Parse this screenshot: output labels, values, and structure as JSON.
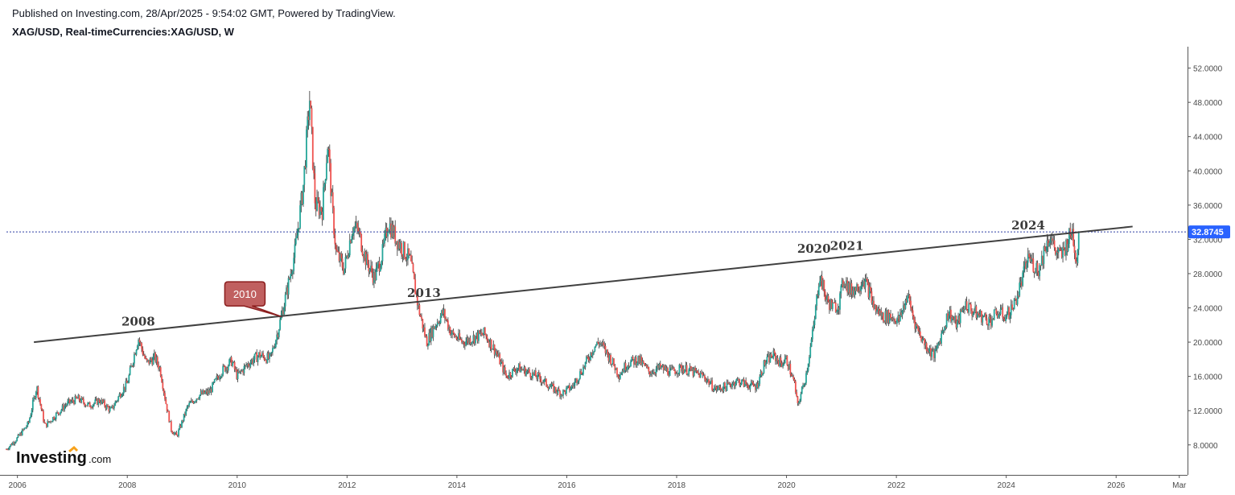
{
  "header": {
    "published": "Published on Investing.com, 28/Apr/2025 - 9:54:02 GMT, Powered by TradingView.",
    "symbol": "XAG/USD, Real-timeCurrencies:XAG/USD, W"
  },
  "logo": {
    "text": "Investing",
    "suffix": ".com"
  },
  "colors": {
    "up": "#26a69a",
    "down": "#ef5350",
    "wick": "#333333",
    "trendline": "#404040",
    "price_line": "#2f3fa3",
    "price_badge": "#2962ff",
    "callout": "#c06060"
  },
  "chart_data": {
    "type": "line",
    "description": "Weekly silver price chart with a rising trendline connecting peaks",
    "x_ticks": [
      "2006",
      "2008",
      "2010",
      "2012",
      "2014",
      "2016",
      "2018",
      "2020",
      "2022",
      "2024",
      "2026",
      "Mar"
    ],
    "y_ticks": [
      "52.0000",
      "48.0000",
      "44.0000",
      "40.0000",
      "36.0000",
      "32.0000",
      "28.0000",
      "24.0000",
      "20.0000",
      "16.0000",
      "12.0000",
      "8.0000"
    ],
    "ylim": [
      4.5,
      54.5
    ],
    "xlim": [
      2005.8,
      2027.3
    ],
    "current_price": "32.8745",
    "current_price_value": 32.8745,
    "trendline": [
      {
        "x": 2006.3,
        "y": 20.0
      },
      {
        "x": 2026.3,
        "y": 33.5
      }
    ],
    "annotations": [
      {
        "label": "2008",
        "x": 2008.2,
        "y": 21.2
      },
      {
        "label": "2010",
        "x": 2010.8,
        "y": 23.0,
        "style": "callout"
      },
      {
        "label": "2013",
        "x": 2013.4,
        "y": 24.5
      },
      {
        "label": "2020",
        "x": 2020.5,
        "y": 29.7
      },
      {
        "label": "2021",
        "x": 2021.1,
        "y": 30.0
      },
      {
        "label": "2024",
        "x": 2024.4,
        "y": 32.4
      }
    ],
    "series": [
      {
        "values": [
          [
            2005.8,
            7.5
          ],
          [
            2006.0,
            8.8
          ],
          [
            2006.2,
            10.5
          ],
          [
            2006.35,
            14.8
          ],
          [
            2006.5,
            10.2
          ],
          [
            2006.7,
            11.5
          ],
          [
            2006.9,
            12.8
          ],
          [
            2007.1,
            13.4
          ],
          [
            2007.3,
            12.6
          ],
          [
            2007.5,
            13.2
          ],
          [
            2007.7,
            12.0
          ],
          [
            2007.9,
            14.3
          ],
          [
            2008.0,
            15.2
          ],
          [
            2008.2,
            20.5
          ],
          [
            2008.35,
            17.5
          ],
          [
            2008.5,
            18.2
          ],
          [
            2008.6,
            16.8
          ],
          [
            2008.7,
            13.0
          ],
          [
            2008.8,
            9.8
          ],
          [
            2008.9,
            9.0
          ],
          [
            2009.1,
            12.5
          ],
          [
            2009.3,
            13.8
          ],
          [
            2009.5,
            14.2
          ],
          [
            2009.7,
            16.5
          ],
          [
            2009.9,
            17.8
          ],
          [
            2010.0,
            16.0
          ],
          [
            2010.2,
            17.5
          ],
          [
            2010.4,
            18.5
          ],
          [
            2010.6,
            18.0
          ],
          [
            2010.75,
            21.5
          ],
          [
            2010.9,
            25.8
          ],
          [
            2011.05,
            30.5
          ],
          [
            2011.2,
            38.0
          ],
          [
            2011.32,
            48.5
          ],
          [
            2011.42,
            36.0
          ],
          [
            2011.55,
            35.5
          ],
          [
            2011.65,
            43.5
          ],
          [
            2011.72,
            36.5
          ],
          [
            2011.8,
            30.5
          ],
          [
            2011.95,
            28.5
          ],
          [
            2012.1,
            33.5
          ],
          [
            2012.2,
            33.0
          ],
          [
            2012.35,
            29.5
          ],
          [
            2012.5,
            27.5
          ],
          [
            2012.65,
            30.5
          ],
          [
            2012.75,
            34.0
          ],
          [
            2012.9,
            32.0
          ],
          [
            2013.0,
            31.0
          ],
          [
            2013.15,
            29.5
          ],
          [
            2013.3,
            24.0
          ],
          [
            2013.45,
            20.0
          ],
          [
            2013.6,
            22.0
          ],
          [
            2013.75,
            23.5
          ],
          [
            2013.9,
            21.0
          ],
          [
            2014.1,
            20.0
          ],
          [
            2014.3,
            20.5
          ],
          [
            2014.5,
            21.0
          ],
          [
            2014.7,
            19.0
          ],
          [
            2014.9,
            16.0
          ],
          [
            2015.1,
            17.0
          ],
          [
            2015.3,
            16.5
          ],
          [
            2015.5,
            15.8
          ],
          [
            2015.7,
            14.8
          ],
          [
            2015.9,
            14.0
          ],
          [
            2016.1,
            14.8
          ],
          [
            2016.3,
            17.0
          ],
          [
            2016.5,
            19.5
          ],
          [
            2016.6,
            20.0
          ],
          [
            2016.8,
            18.0
          ],
          [
            2016.95,
            16.2
          ],
          [
            2017.1,
            17.5
          ],
          [
            2017.3,
            18.0
          ],
          [
            2017.5,
            16.5
          ],
          [
            2017.7,
            17.0
          ],
          [
            2017.9,
            16.5
          ],
          [
            2018.1,
            17.0
          ],
          [
            2018.3,
            16.5
          ],
          [
            2018.5,
            16.0
          ],
          [
            2018.7,
            14.5
          ],
          [
            2018.9,
            14.8
          ],
          [
            2019.1,
            15.5
          ],
          [
            2019.3,
            15.0
          ],
          [
            2019.45,
            14.8
          ],
          [
            2019.6,
            17.5
          ],
          [
            2019.75,
            18.5
          ],
          [
            2019.9,
            17.5
          ],
          [
            2020.0,
            18.0
          ],
          [
            2020.15,
            15.0
          ],
          [
            2020.2,
            12.5
          ],
          [
            2020.35,
            16.0
          ],
          [
            2020.5,
            22.0
          ],
          [
            2020.6,
            28.0
          ],
          [
            2020.72,
            25.0
          ],
          [
            2020.85,
            24.0
          ],
          [
            2020.95,
            24.5
          ],
          [
            2021.05,
            27.5
          ],
          [
            2021.15,
            26.0
          ],
          [
            2021.3,
            26.5
          ],
          [
            2021.4,
            27.5
          ],
          [
            2021.5,
            26.0
          ],
          [
            2021.6,
            24.0
          ],
          [
            2021.75,
            23.0
          ],
          [
            2021.9,
            23.0
          ],
          [
            2022.05,
            22.5
          ],
          [
            2022.2,
            25.5
          ],
          [
            2022.35,
            22.0
          ],
          [
            2022.5,
            20.0
          ],
          [
            2022.6,
            19.0
          ],
          [
            2022.7,
            18.5
          ],
          [
            2022.85,
            21.5
          ],
          [
            2022.95,
            23.5
          ],
          [
            2023.1,
            22.0
          ],
          [
            2023.25,
            24.5
          ],
          [
            2023.4,
            23.5
          ],
          [
            2023.55,
            23.0
          ],
          [
            2023.7,
            22.5
          ],
          [
            2023.85,
            23.5
          ],
          [
            2024.0,
            23.0
          ],
          [
            2024.15,
            24.5
          ],
          [
            2024.3,
            27.5
          ],
          [
            2024.4,
            30.0
          ],
          [
            2024.5,
            29.0
          ],
          [
            2024.6,
            28.5
          ],
          [
            2024.7,
            31.0
          ],
          [
            2024.8,
            32.5
          ],
          [
            2024.9,
            30.5
          ],
          [
            2025.0,
            30.0
          ],
          [
            2025.1,
            31.5
          ],
          [
            2025.2,
            33.0
          ],
          [
            2025.28,
            29.5
          ],
          [
            2025.32,
            32.87
          ]
        ]
      }
    ]
  }
}
